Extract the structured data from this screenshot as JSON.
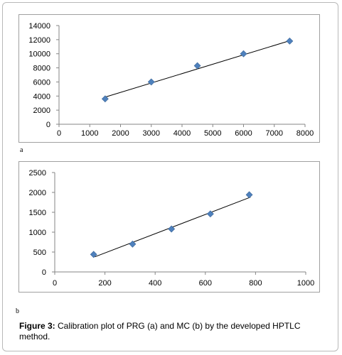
{
  "chart_data": [
    {
      "type": "scatter",
      "panel_label": "a",
      "points": [
        [
          1500,
          3600
        ],
        [
          3000,
          6000
        ],
        [
          4500,
          8300
        ],
        [
          6000,
          10000
        ],
        [
          7500,
          11800
        ]
      ],
      "trendline": {
        "from": [
          1500,
          3850
        ],
        "to": [
          7500,
          11850
        ]
      },
      "xlim": [
        0,
        8000
      ],
      "ylim": [
        0,
        14000
      ],
      "x_ticks": [
        0,
        1000,
        2000,
        3000,
        4000,
        5000,
        6000,
        7000,
        8000
      ],
      "y_ticks": [
        0,
        2000,
        4000,
        6000,
        8000,
        10000,
        12000,
        14000
      ],
      "marker_color": "#4f81bd",
      "grid": false
    },
    {
      "type": "scatter",
      "panel_label": "b",
      "points": [
        [
          155,
          440
        ],
        [
          310,
          700
        ],
        [
          465,
          1080
        ],
        [
          620,
          1460
        ],
        [
          775,
          1940
        ]
      ],
      "trendline": {
        "from": [
          160,
          380
        ],
        "to": [
          780,
          1880
        ]
      },
      "xlim": [
        0,
        1000
      ],
      "ylim": [
        0,
        2500
      ],
      "x_ticks": [
        0,
        200,
        400,
        600,
        800,
        1000
      ],
      "y_ticks": [
        0,
        500,
        1000,
        1500,
        2000,
        2500
      ],
      "marker_color": "#4f81bd",
      "grid": false
    }
  ],
  "caption": {
    "label": "Figure 3:",
    "text": " Calibration plot of PRG (a) and MC (b) by the developed HPTLC method."
  }
}
